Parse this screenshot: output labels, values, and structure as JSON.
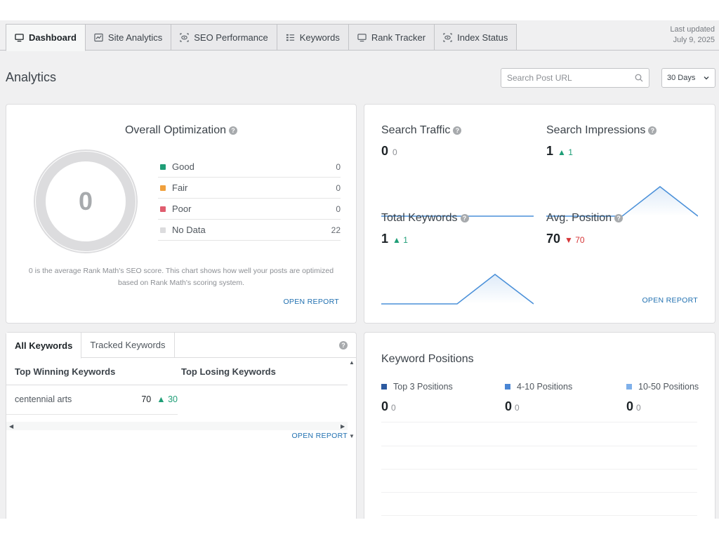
{
  "tabs": [
    {
      "label": "Dashboard",
      "icon": "monitor-icon",
      "active": true
    },
    {
      "label": "Site Analytics",
      "icon": "chart-line-icon"
    },
    {
      "label": "SEO Performance",
      "icon": "eye-icon"
    },
    {
      "label": "Keywords",
      "icon": "list-icon"
    },
    {
      "label": "Rank Tracker",
      "icon": "monitor-icon"
    },
    {
      "label": "Index Status",
      "icon": "eye-icon"
    }
  ],
  "last_updated": {
    "label": "Last updated",
    "date": "July 9, 2025"
  },
  "page": {
    "title": "Analytics"
  },
  "search": {
    "placeholder": "Search Post URL"
  },
  "period": {
    "selected": "30 Days"
  },
  "optimization": {
    "title": "Overall Optimization",
    "score": "0",
    "legend": [
      {
        "label": "Good",
        "value": "0",
        "color": "#1f9e77"
      },
      {
        "label": "Fair",
        "value": "0",
        "color": "#f0a03c"
      },
      {
        "label": "Poor",
        "value": "0",
        "color": "#e05d6f"
      },
      {
        "label": "No Data",
        "value": "22",
        "color": "#dcdcde"
      }
    ],
    "description": "0 is the average Rank Math's SEO score. This chart shows how well your posts are optimized based on Rank Math's scoring system.",
    "open_report": "OPEN REPORT"
  },
  "stats": {
    "search_traffic": {
      "title": "Search Traffic",
      "value": "0",
      "sub": "0"
    },
    "search_impressions": {
      "title": "Search Impressions",
      "value": "1",
      "change": "1"
    },
    "total_keywords": {
      "title": "Total Keywords",
      "value": "1",
      "change": "1"
    },
    "avg_position": {
      "title": "Avg. Position",
      "value": "70",
      "change": "70"
    },
    "open_report": "OPEN REPORT"
  },
  "keywords": {
    "tabs": [
      "All Keywords",
      "Tracked Keywords"
    ],
    "winning_header": "Top Winning Keywords",
    "losing_header": "Top Losing Keywords",
    "rows": [
      {
        "keyword": "centennial arts",
        "position": "70",
        "change": "30"
      }
    ],
    "open_report": "OPEN REPORT"
  },
  "positions": {
    "title": "Keyword Positions",
    "items": [
      {
        "label": "Top 3 Positions",
        "value": "0",
        "sub": "0",
        "color": "#2c5aa0"
      },
      {
        "label": "4-10 Positions",
        "value": "0",
        "sub": "0",
        "color": "#4a86d4"
      },
      {
        "label": "10-50 Positions",
        "value": "0",
        "sub": "0",
        "color": "#7fb0ea"
      }
    ]
  },
  "colors": {
    "accent": "#2271b1",
    "up": "#1f9e77",
    "down": "#d63638",
    "spark": "#4a90d9"
  }
}
